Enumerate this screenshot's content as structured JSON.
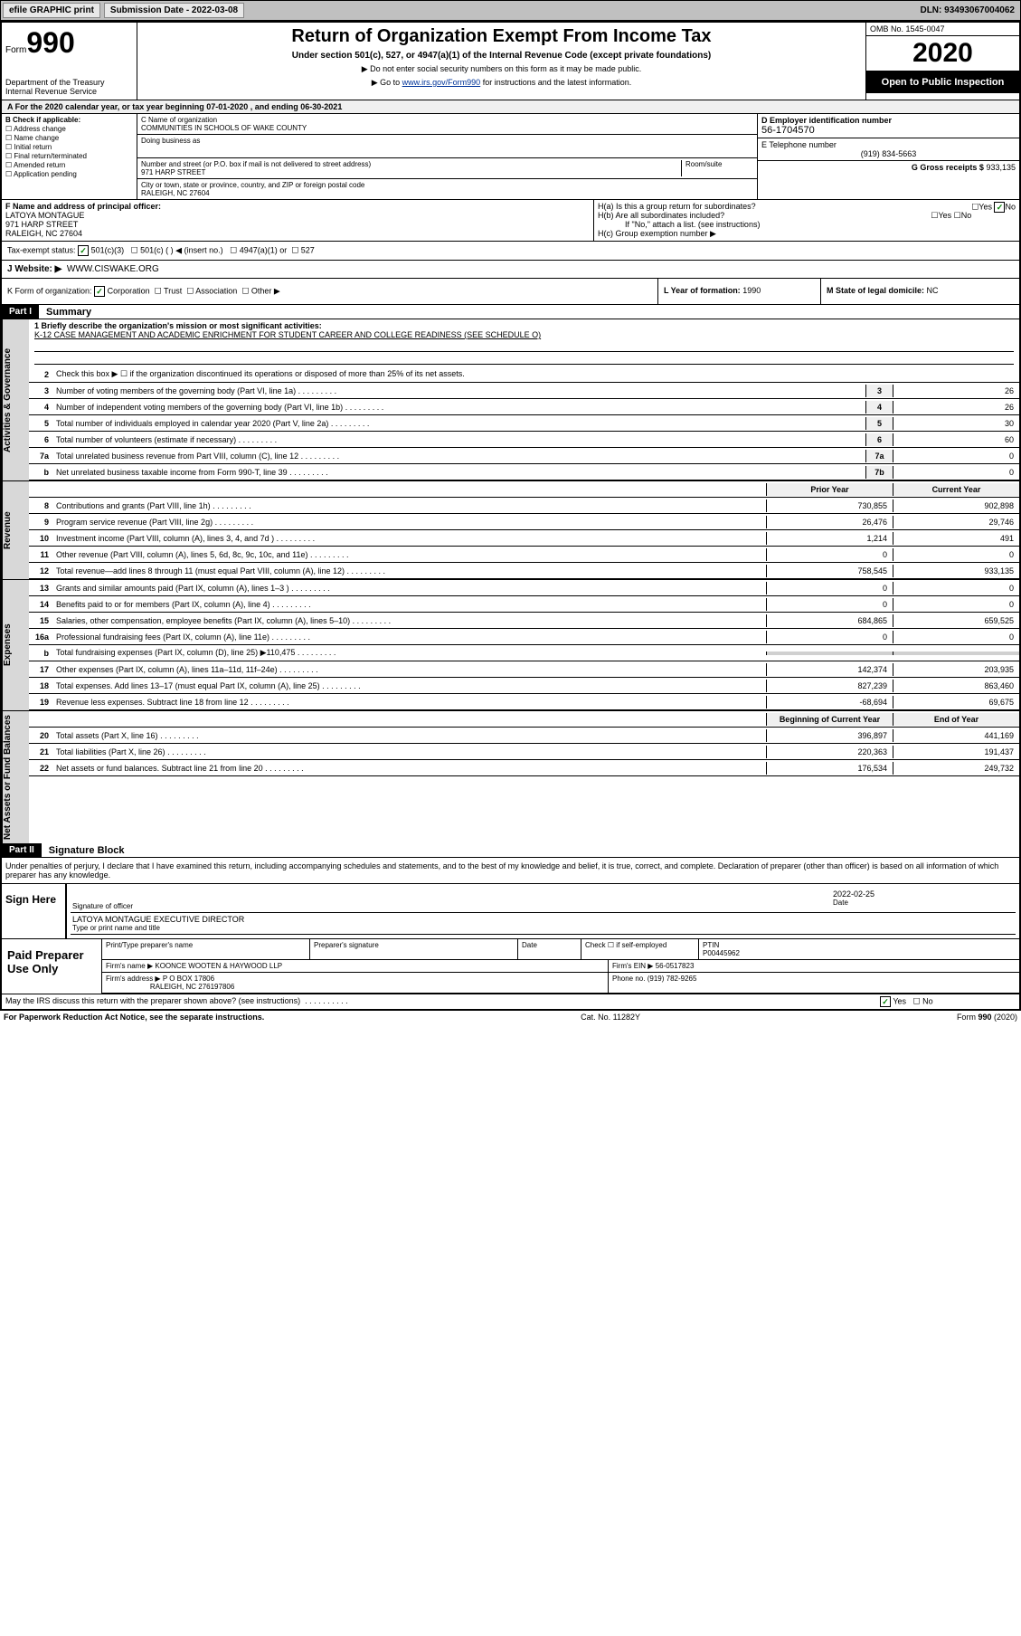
{
  "topbar": {
    "efile": "efile GRAPHIC print",
    "subdate_label": "Submission Date - 2022-03-08",
    "dln": "DLN: 93493067004062"
  },
  "header": {
    "form_prefix": "Form",
    "form_num": "990",
    "dept": "Department of the Treasury\nInternal Revenue Service",
    "title": "Return of Organization Exempt From Income Tax",
    "subtitle": "Under section 501(c), 527, or 4947(a)(1) of the Internal Revenue Code (except private foundations)",
    "instr1": "▶ Do not enter social security numbers on this form as it may be made public.",
    "instr2_pre": "▶ Go to ",
    "instr2_link": "www.irs.gov/Form990",
    "instr2_post": " for instructions and the latest information.",
    "omb": "OMB No. 1545-0047",
    "year": "2020",
    "open": "Open to Public Inspection"
  },
  "period": "A For the 2020 calendar year, or tax year beginning 07-01-2020    , and ending 06-30-2021",
  "sectionB": {
    "label": "B Check if applicable:",
    "opts": [
      "Address change",
      "Name change",
      "Initial return",
      "Final return/terminated",
      "Amended return",
      "Application pending"
    ]
  },
  "sectionC": {
    "name_label": "C Name of organization",
    "name": "COMMUNITIES IN SCHOOLS OF WAKE COUNTY",
    "dba_label": "Doing business as",
    "street_label": "Number and street (or P.O. box if mail is not delivered to street address)",
    "room_label": "Room/suite",
    "street": "971 HARP STREET",
    "city_label": "City or town, state or province, country, and ZIP or foreign postal code",
    "city": "RALEIGH, NC  27604"
  },
  "sectionD": {
    "label": "D Employer identification number",
    "ein": "56-1704570"
  },
  "sectionE": {
    "label": "E Telephone number",
    "phone": "(919) 834-5663"
  },
  "sectionG": {
    "label": "G Gross receipts $",
    "val": "933,135"
  },
  "sectionF": {
    "label": "F  Name and address of principal officer:",
    "name": "LATOYA MONTAGUE",
    "addr1": "971 HARP STREET",
    "addr2": "RALEIGH, NC  27604"
  },
  "sectionH": {
    "a": "H(a)  Is this a group return for subordinates?",
    "b": "H(b)  Are all subordinates included?",
    "b_note": "If \"No,\" attach a list. (see instructions)",
    "c": "H(c)  Group exemption number ▶"
  },
  "taxexempt": {
    "label": "Tax-exempt status:",
    "o1": "501(c)(3)",
    "o2": "501(c) (  ) ◀ (insert no.)",
    "o3": "4947(a)(1) or",
    "o4": "527"
  },
  "sectionJ": {
    "label": "J    Website: ▶",
    "url": "WWW.CISWAKE.ORG"
  },
  "sectionK": {
    "label": "K Form of organization:",
    "opts": [
      "Corporation",
      "Trust",
      "Association",
      "Other ▶"
    ]
  },
  "sectionL": {
    "label": "L Year of formation:",
    "val": "1990"
  },
  "sectionM": {
    "label": "M State of legal domicile:",
    "val": "NC"
  },
  "part1": {
    "hdr": "Part I",
    "title": "Summary",
    "line1_label": "1  Briefly describe the organization's mission or most significant activities:",
    "line1_text": "K-12 CASE MANAGEMENT AND ACADEMIC ENRICHMENT FOR STUDENT CAREER AND COLLEGE READINESS (SEE SCHEDULE O)",
    "line2": "Check this box ▶ ☐  if the organization discontinued its operations or disposed of more than 25% of its net assets.",
    "side_gov": "Activities & Governance",
    "side_rev": "Revenue",
    "side_exp": "Expenses",
    "side_net": "Net Assets or Fund Balances",
    "prior_hdr": "Prior Year",
    "current_hdr": "Current Year",
    "begin_hdr": "Beginning of Current Year",
    "end_hdr": "End of Year",
    "rows_gov": [
      {
        "n": "3",
        "t": "Number of voting members of the governing body (Part VI, line 1a)",
        "b": "3",
        "v": "26"
      },
      {
        "n": "4",
        "t": "Number of independent voting members of the governing body (Part VI, line 1b)",
        "b": "4",
        "v": "26"
      },
      {
        "n": "5",
        "t": "Total number of individuals employed in calendar year 2020 (Part V, line 2a)",
        "b": "5",
        "v": "30"
      },
      {
        "n": "6",
        "t": "Total number of volunteers (estimate if necessary)",
        "b": "6",
        "v": "60"
      },
      {
        "n": "7a",
        "t": "Total unrelated business revenue from Part VIII, column (C), line 12",
        "b": "7a",
        "v": "0"
      },
      {
        "n": "b",
        "t": "Net unrelated business taxable income from Form 990-T, line 39",
        "b": "7b",
        "v": "0"
      }
    ],
    "rows_rev": [
      {
        "n": "8",
        "t": "Contributions and grants (Part VIII, line 1h)",
        "p": "730,855",
        "c": "902,898"
      },
      {
        "n": "9",
        "t": "Program service revenue (Part VIII, line 2g)",
        "p": "26,476",
        "c": "29,746"
      },
      {
        "n": "10",
        "t": "Investment income (Part VIII, column (A), lines 3, 4, and 7d )",
        "p": "1,214",
        "c": "491"
      },
      {
        "n": "11",
        "t": "Other revenue (Part VIII, column (A), lines 5, 6d, 8c, 9c, 10c, and 11e)",
        "p": "0",
        "c": "0"
      },
      {
        "n": "12",
        "t": "Total revenue—add lines 8 through 11 (must equal Part VIII, column (A), line 12)",
        "p": "758,545",
        "c": "933,135"
      }
    ],
    "rows_exp": [
      {
        "n": "13",
        "t": "Grants and similar amounts paid (Part IX, column (A), lines 1–3 )",
        "p": "0",
        "c": "0"
      },
      {
        "n": "14",
        "t": "Benefits paid to or for members (Part IX, column (A), line 4)",
        "p": "0",
        "c": "0"
      },
      {
        "n": "15",
        "t": "Salaries, other compensation, employee benefits (Part IX, column (A), lines 5–10)",
        "p": "684,865",
        "c": "659,525"
      },
      {
        "n": "16a",
        "t": "Professional fundraising fees (Part IX, column (A), line 11e)",
        "p": "0",
        "c": "0"
      },
      {
        "n": "b",
        "t": "Total fundraising expenses (Part IX, column (D), line 25) ▶110,475",
        "p": "",
        "c": ""
      },
      {
        "n": "17",
        "t": "Other expenses (Part IX, column (A), lines 11a–11d, 11f–24e)",
        "p": "142,374",
        "c": "203,935"
      },
      {
        "n": "18",
        "t": "Total expenses. Add lines 13–17 (must equal Part IX, column (A), line 25)",
        "p": "827,239",
        "c": "863,460"
      },
      {
        "n": "19",
        "t": "Revenue less expenses. Subtract line 18 from line 12",
        "p": "-68,694",
        "c": "69,675"
      }
    ],
    "rows_net": [
      {
        "n": "20",
        "t": "Total assets (Part X, line 16)",
        "p": "396,897",
        "c": "441,169"
      },
      {
        "n": "21",
        "t": "Total liabilities (Part X, line 26)",
        "p": "220,363",
        "c": "191,437"
      },
      {
        "n": "22",
        "t": "Net assets or fund balances. Subtract line 21 from line 20",
        "p": "176,534",
        "c": "249,732"
      }
    ]
  },
  "part2": {
    "hdr": "Part II",
    "title": "Signature Block",
    "declaration": "Under penalties of perjury, I declare that I have examined this return, including accompanying schedules and statements, and to the best of my knowledge and belief, it is true, correct, and complete. Declaration of preparer (other than officer) is based on all information of which preparer has any knowledge."
  },
  "sign": {
    "here": "Sign Here",
    "sig_label": "Signature of officer",
    "date_label": "Date",
    "date": "2022-02-25",
    "name": "LATOYA MONTAGUE  EXECUTIVE DIRECTOR",
    "name_label": "Type or print name and title"
  },
  "paid": {
    "left": "Paid Preparer Use Only",
    "h1": "Print/Type preparer's name",
    "h2": "Preparer's signature",
    "h3": "Date",
    "h4": "Check ☐ if self-employed",
    "h5_label": "PTIN",
    "h5": "P00445962",
    "firm_label": "Firm's name    ▶",
    "firm": "KOONCE WOOTEN & HAYWOOD LLP",
    "ein_label": "Firm's EIN ▶",
    "ein": "56-0517823",
    "addr_label": "Firm's address ▶",
    "addr1": "P O BOX 17806",
    "addr2": "RALEIGH, NC  276197806",
    "phone_label": "Phone no.",
    "phone": "(919) 782-9265"
  },
  "footer": {
    "discuss": "May the IRS discuss this return with the preparer shown above? (see instructions)",
    "paperwork": "For Paperwork Reduction Act Notice, see the separate instructions.",
    "catno": "Cat. No. 11282Y",
    "formno": "Form 990 (2020)"
  }
}
